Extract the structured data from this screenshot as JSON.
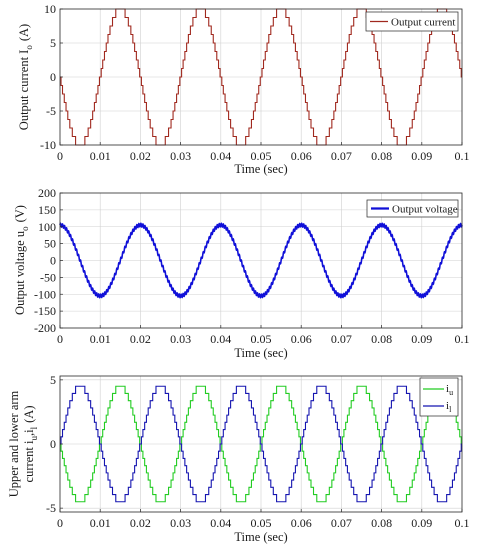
{
  "chart_data": [
    {
      "type": "line",
      "xlabel": "Time (sec)",
      "ylabel_main": "Output current I",
      "ylabel_sub": "o",
      "ylabel_tail": "(A)",
      "xlim": [
        0,
        0.1
      ],
      "ylim": [
        -10,
        10
      ],
      "xticks": [
        "0",
        "0.01",
        "0.02",
        "0.03",
        "0.04",
        "0.05",
        "0.06",
        "0.07",
        "0.08",
        "0.09",
        "0.1"
      ],
      "yticks": [
        "10",
        "5",
        "0",
        "-5",
        "-10"
      ],
      "grid": true,
      "legend_position": "top-right",
      "series": [
        {
          "name": "Output current",
          "color": "#a0281e",
          "amplitude": 10,
          "frequency_hz": 50,
          "phase": "negative sine",
          "staircase_levels": 16
        }
      ]
    },
    {
      "type": "line",
      "xlabel": "Time (sec)",
      "ylabel_main": "Output voltage u",
      "ylabel_sub": "o",
      "ylabel_tail": "(V)",
      "xlim": [
        0,
        0.1
      ],
      "ylim": [
        -200,
        200
      ],
      "xticks": [
        "0",
        "0.01",
        "0.02",
        "0.03",
        "0.04",
        "0.05",
        "0.06",
        "0.07",
        "0.08",
        "0.09",
        "0.1"
      ],
      "yticks": [
        "200",
        "150",
        "100",
        "50",
        "0",
        "-50",
        "-100",
        "-150",
        "-200"
      ],
      "grid": true,
      "legend_position": "top-right",
      "series": [
        {
          "name": "Output voltage",
          "color": "#1010d8",
          "amplitude": 105,
          "ripple": 5,
          "frequency_hz": 50,
          "phase": "cosine"
        }
      ]
    },
    {
      "type": "line",
      "xlabel": "Time (sec)",
      "ylabel_line1": "Upper and lower arm",
      "ylabel_line2_main": "current  i",
      "ylabel_line2_sub1": "u",
      "ylabel_line2_mid": ",i",
      "ylabel_line2_sub2": "l",
      "ylabel_line2_tail": "(A)",
      "xlim": [
        0,
        0.1
      ],
      "ylim": [
        -5.3,
        5.3
      ],
      "xticks": [
        "0",
        "0.01",
        "0.02",
        "0.03",
        "0.04",
        "0.05",
        "0.06",
        "0.07",
        "0.08",
        "0.09",
        "0.1"
      ],
      "yticks": [
        "5",
        "0",
        "-5"
      ],
      "grid": true,
      "legend_position": "top-right",
      "series": [
        {
          "name": "i",
          "sub": "u",
          "color": "#22cc22",
          "amplitude": 4.5,
          "offset": 0,
          "frequency_hz": 50,
          "phase": "negative sine",
          "staircase_levels": 16
        },
        {
          "name": "i",
          "sub": "l",
          "color": "#1515b0",
          "amplitude": 4.5,
          "offset": 0,
          "frequency_hz": 50,
          "phase": "sine",
          "staircase_levels": 16
        }
      ]
    }
  ]
}
